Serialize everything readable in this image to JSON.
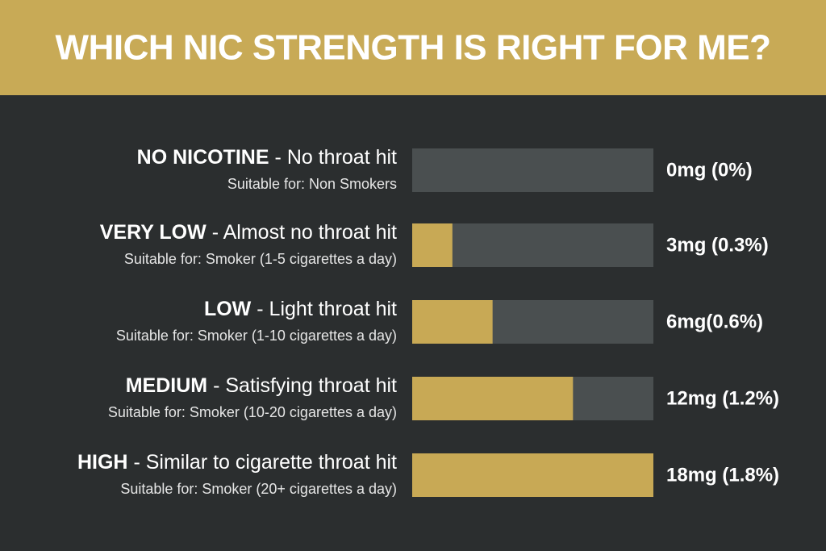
{
  "chart_data": {
    "type": "bar",
    "orientation": "horizontal",
    "title": "WHICH NIC STRENGTH IS RIGHT FOR ME?",
    "categories": [
      "NO NICOTINE",
      "VERY LOW",
      "LOW",
      "MEDIUM",
      "HIGH"
    ],
    "descriptions": [
      "- No throat hit",
      "- Almost no throat hit",
      "- Light throat hit",
      "- Satisfying throat hit",
      "- Similar to cigarette throat hit"
    ],
    "suitability": [
      "Suitable for: Non Smokers",
      "Suitable for: Smoker (1-5 cigarettes a day)",
      "Suitable for: Smoker (1-10 cigarettes a day)",
      "Suitable for: Smoker (10-20 cigarettes a day)",
      "Suitable for: Smoker (20+ cigarettes a day)"
    ],
    "values": [
      0,
      3,
      6,
      12,
      18
    ],
    "value_labels": [
      "0mg (0%)",
      "3mg (0.3%)",
      "6mg(0.6%)",
      "12mg (1.2%)",
      "18mg (1.8%)"
    ],
    "xlim": [
      0,
      18
    ],
    "color": "#c8a955",
    "track_color": "#4a4f50"
  }
}
